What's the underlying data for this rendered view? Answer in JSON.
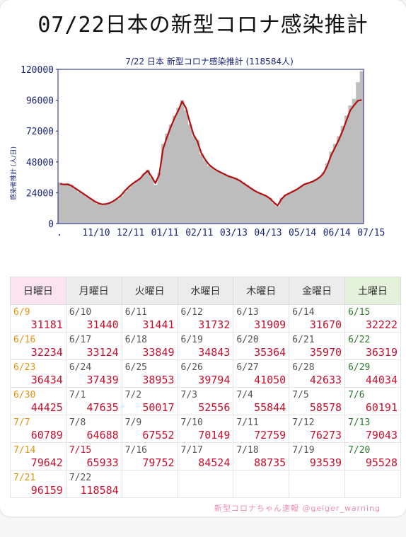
{
  "page_title": "07/22日本の新型コロナ感染推計",
  "footer": "新型コロナちゃん速報 @geiger_warning",
  "colors": {
    "line": "#b01010",
    "bar": "#bdbdbd",
    "value": "#c8102e",
    "holiday": "#e6930f",
    "saturday": "#2d7a2d"
  },
  "chart_data": {
    "type": "bar",
    "title": "7/22 日本 新型コロナ感染推計 (118584人)",
    "ylabel": "感染者推計 (人/日)",
    "ylim": [
      0,
      120000
    ],
    "y_ticks": [
      "120000",
      "96000",
      "72000",
      "48000",
      "24000",
      "0"
    ],
    "y_tick_values": [
      120000,
      96000,
      72000,
      48000,
      24000,
      0
    ],
    "x_ticks": [
      ".",
      "11/10",
      "12/11",
      "01/11",
      "02/11",
      "03/13",
      "04/13",
      "05/14",
      "06/14",
      "07/15"
    ],
    "x_tick_positions": [
      0,
      10,
      19,
      28,
      37,
      46,
      55,
      64,
      73,
      82
    ],
    "grid": false,
    "series": [
      {
        "values": [
          32000,
          31000,
          31500,
          30000,
          27000,
          24500,
          23000,
          21000,
          19500,
          17500,
          15500,
          14500,
          15000,
          16000,
          17500,
          19000,
          21500,
          25000,
          28000,
          31000,
          33500,
          35500,
          39000,
          42000,
          36000,
          30000,
          39500,
          62000,
          70000,
          77000,
          84000,
          90000,
          96000,
          88000,
          77000,
          68000,
          65000,
          54000,
          49000,
          45000,
          43000,
          41000,
          40000,
          39000,
          37500,
          36500,
          35500,
          34000,
          32000,
          30000,
          27500,
          25500,
          24000,
          23000,
          21500,
          20000,
          16000,
          13500,
          20000,
          22500,
          24000,
          25500,
          27000,
          29000,
          31000,
          32000,
          33000,
          34500,
          36500,
          40000,
          47000,
          56000,
          62000,
          68000,
          76000,
          84000,
          92000,
          97000,
          110000,
          118584
        ]
      },
      {
        "values": [
          30800,
          30500,
          30500,
          29500,
          27500,
          25500,
          23500,
          21500,
          19500,
          17500,
          16000,
          15000,
          15200,
          16000,
          17500,
          19500,
          22000,
          25500,
          28500,
          31000,
          33000,
          35000,
          38500,
          41000,
          36500,
          31500,
          38000,
          58000,
          67000,
          75000,
          82000,
          88000,
          95000,
          90000,
          79000,
          69000,
          64000,
          55000,
          50000,
          46000,
          43500,
          41500,
          40000,
          38500,
          37000,
          36000,
          35000,
          33500,
          31500,
          29500,
          27500,
          25500,
          24000,
          22800,
          21500,
          19500,
          16500,
          14000,
          19000,
          22000,
          23500,
          25000,
          26500,
          28500,
          30500,
          31500,
          32500,
          34000,
          36000,
          39000,
          45000,
          53000,
          59000,
          65000,
          72000,
          80000,
          88000,
          92000,
          95528,
          96159
        ]
      }
    ]
  },
  "calendar": {
    "headers": [
      "日曜日",
      "月曜日",
      "火曜日",
      "水曜日",
      "木曜日",
      "金曜日",
      "土曜日"
    ],
    "weeks": [
      [
        {
          "d": "6/9",
          "v": "31181",
          "c": "orange"
        },
        {
          "d": "6/10",
          "v": "31440"
        },
        {
          "d": "6/11",
          "v": "31441"
        },
        {
          "d": "6/12",
          "v": "31732"
        },
        {
          "d": "6/13",
          "v": "31909"
        },
        {
          "d": "6/14",
          "v": "31670"
        },
        {
          "d": "6/15",
          "v": "32222",
          "c": "green"
        }
      ],
      [
        {
          "d": "6/16",
          "v": "32234",
          "c": "orange"
        },
        {
          "d": "6/17",
          "v": "33124"
        },
        {
          "d": "6/18",
          "v": "33849"
        },
        {
          "d": "6/19",
          "v": "34843"
        },
        {
          "d": "6/20",
          "v": "35364"
        },
        {
          "d": "6/21",
          "v": "35970"
        },
        {
          "d": "6/22",
          "v": "36319",
          "c": "green"
        }
      ],
      [
        {
          "d": "6/23",
          "v": "36434",
          "c": "orange"
        },
        {
          "d": "6/24",
          "v": "37439"
        },
        {
          "d": "6/25",
          "v": "38953"
        },
        {
          "d": "6/26",
          "v": "39794"
        },
        {
          "d": "6/27",
          "v": "41050"
        },
        {
          "d": "6/28",
          "v": "42633"
        },
        {
          "d": "6/29",
          "v": "44034",
          "c": "green"
        }
      ],
      [
        {
          "d": "6/30",
          "v": "44425",
          "c": "orange"
        },
        {
          "d": "7/1",
          "v": "47635"
        },
        {
          "d": "7/2",
          "v": "50017"
        },
        {
          "d": "7/3",
          "v": "52556"
        },
        {
          "d": "7/4",
          "v": "55844"
        },
        {
          "d": "7/5",
          "v": "58578"
        },
        {
          "d": "7/6",
          "v": "60191",
          "c": "green"
        }
      ],
      [
        {
          "d": "7/7",
          "v": "60789",
          "c": "orange"
        },
        {
          "d": "7/8",
          "v": "64688"
        },
        {
          "d": "7/9",
          "v": "67552"
        },
        {
          "d": "7/10",
          "v": "70149"
        },
        {
          "d": "7/11",
          "v": "72759"
        },
        {
          "d": "7/12",
          "v": "76273"
        },
        {
          "d": "7/13",
          "v": "79043",
          "c": "green"
        }
      ],
      [
        {
          "d": "7/14",
          "v": "79642",
          "c": "orange"
        },
        {
          "d": "7/15",
          "v": "65933",
          "c": "red"
        },
        {
          "d": "7/16",
          "v": "79752"
        },
        {
          "d": "7/17",
          "v": "84524"
        },
        {
          "d": "7/18",
          "v": "88735"
        },
        {
          "d": "7/19",
          "v": "93539"
        },
        {
          "d": "7/20",
          "v": "95528",
          "c": "green"
        }
      ],
      [
        {
          "d": "7/21",
          "v": "96159",
          "c": "orange"
        },
        {
          "d": "7/22",
          "v": "118584"
        },
        {
          "d": "",
          "v": ""
        },
        {
          "d": "",
          "v": ""
        },
        {
          "d": "",
          "v": ""
        },
        {
          "d": "",
          "v": ""
        },
        {
          "d": "",
          "v": ""
        }
      ]
    ]
  }
}
